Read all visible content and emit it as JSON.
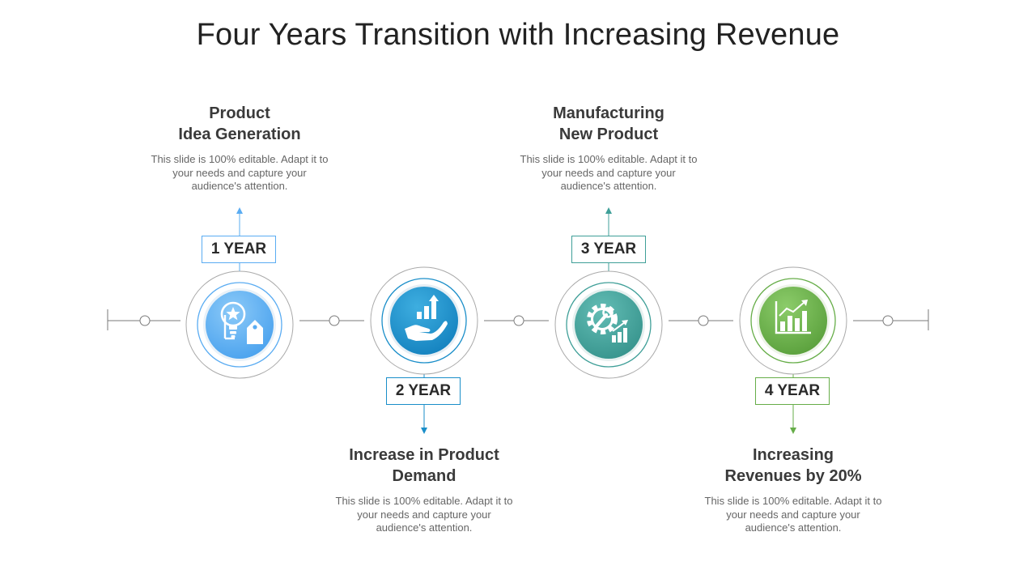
{
  "title": "Four Years Transition with Increasing Revenue",
  "colors": {
    "step1": "#5aacf2",
    "step2": "#1a8ec9",
    "step3": "#3f9f98",
    "step4": "#66ad48",
    "line": "#777777"
  },
  "steps": [
    {
      "year": "1 YEAR",
      "heading_line1": "Product",
      "heading_line2": "Idea Generation",
      "desc_line1": "This slide is 100% editable. Adapt it to",
      "desc_line2": "your needs and capture your",
      "desc_line3": "audience's attention.",
      "icon": "lightbulb-star-tag-icon"
    },
    {
      "year": "2 YEAR",
      "heading_line1": "Increase in Product",
      "heading_line2": "Demand",
      "desc_line1": "This slide is 100% editable. Adapt it to",
      "desc_line2": "your needs and capture your",
      "desc_line3": "audience's attention.",
      "icon": "hand-growth-chart-icon"
    },
    {
      "year": "3 YEAR",
      "heading_line1": "Manufacturing",
      "heading_line2": "New Product",
      "desc_line1": "This slide is 100% editable. Adapt it to",
      "desc_line2": "your needs and capture your",
      "desc_line3": "audience's attention.",
      "icon": "gear-wrench-chart-icon"
    },
    {
      "year": "4 YEAR",
      "heading_line1": "Increasing",
      "heading_line2": "Revenues by 20%",
      "desc_line1": "This slide is 100% editable. Adapt it to",
      "desc_line2": "your needs and capture your",
      "desc_line3": "audience's attention.",
      "icon": "bar-chart-growth-icon"
    }
  ]
}
